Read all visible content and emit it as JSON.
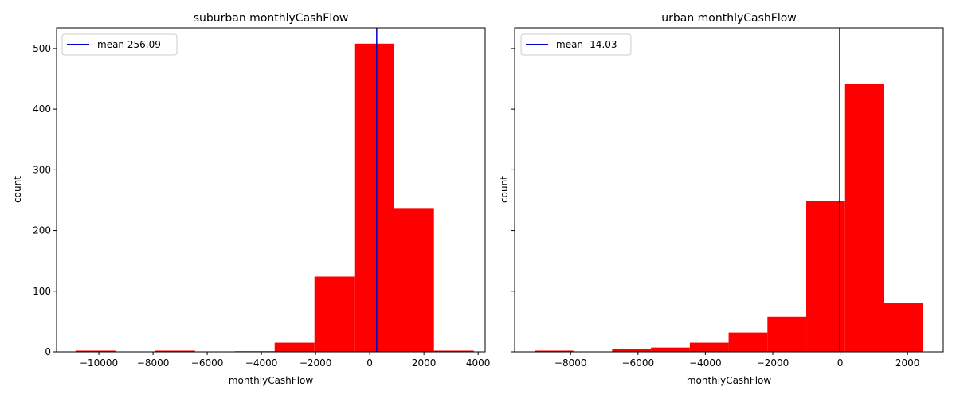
{
  "colors": {
    "bar": "#ff0000",
    "mean_line": "#0000cc",
    "axes": "#000000"
  },
  "chart_data": [
    {
      "type": "bar",
      "title": "suburban monthlyCashFlow",
      "xlabel": "monthlyCashFlow",
      "ylabel": "count",
      "xlim": [
        -11560,
        4260
      ],
      "ylim": [
        0,
        534
      ],
      "xticks": [
        -10000,
        -8000,
        -6000,
        -4000,
        -2000,
        0,
        2000,
        4000
      ],
      "xtick_labels": [
        "−10000",
        "−8000",
        "−6000",
        "−4000",
        "−2000",
        "0",
        "2000",
        "4000"
      ],
      "yticks": [
        0,
        100,
        200,
        300,
        400,
        500
      ],
      "ytick_labels": [
        "0",
        "100",
        "200",
        "300",
        "400",
        "500"
      ],
      "bin_edges": [
        -10860,
        -9390,
        -7920,
        -6450,
        -4980,
        -3510,
        -2040,
        -570,
        900,
        2370,
        3840
      ],
      "counts": [
        2,
        0,
        2,
        0,
        1,
        15,
        124,
        508,
        237,
        2
      ],
      "mean": 256.09,
      "legend": {
        "label": "mean 256.09",
        "placement": "upper left"
      },
      "grid": false
    },
    {
      "type": "bar",
      "title": "urban monthlyCashFlow",
      "xlabel": "monthlyCashFlow",
      "ylabel": "count",
      "xlim": [
        -9660,
        3060
      ],
      "ylim": [
        0,
        534
      ],
      "xticks": [
        -8000,
        -6000,
        -4000,
        -2000,
        0,
        2000
      ],
      "xtick_labels": [
        "−8000",
        "−6000",
        "−4000",
        "−2000",
        "0",
        "2000"
      ],
      "yticks": [
        0,
        100,
        200,
        300,
        400,
        500
      ],
      "ytick_labels": [
        "",
        "",
        "",
        "",
        "",
        ""
      ],
      "bin_edges": [
        -9070,
        -7918,
        -6766,
        -5614,
        -4462,
        -3310,
        -2158,
        -1006,
        146,
        1298,
        2450
      ],
      "counts": [
        2,
        0,
        4,
        7,
        15,
        32,
        58,
        249,
        441,
        80
      ],
      "mean": -14.03,
      "legend": {
        "label": "mean -14.03",
        "placement": "upper left"
      },
      "grid": false
    }
  ]
}
